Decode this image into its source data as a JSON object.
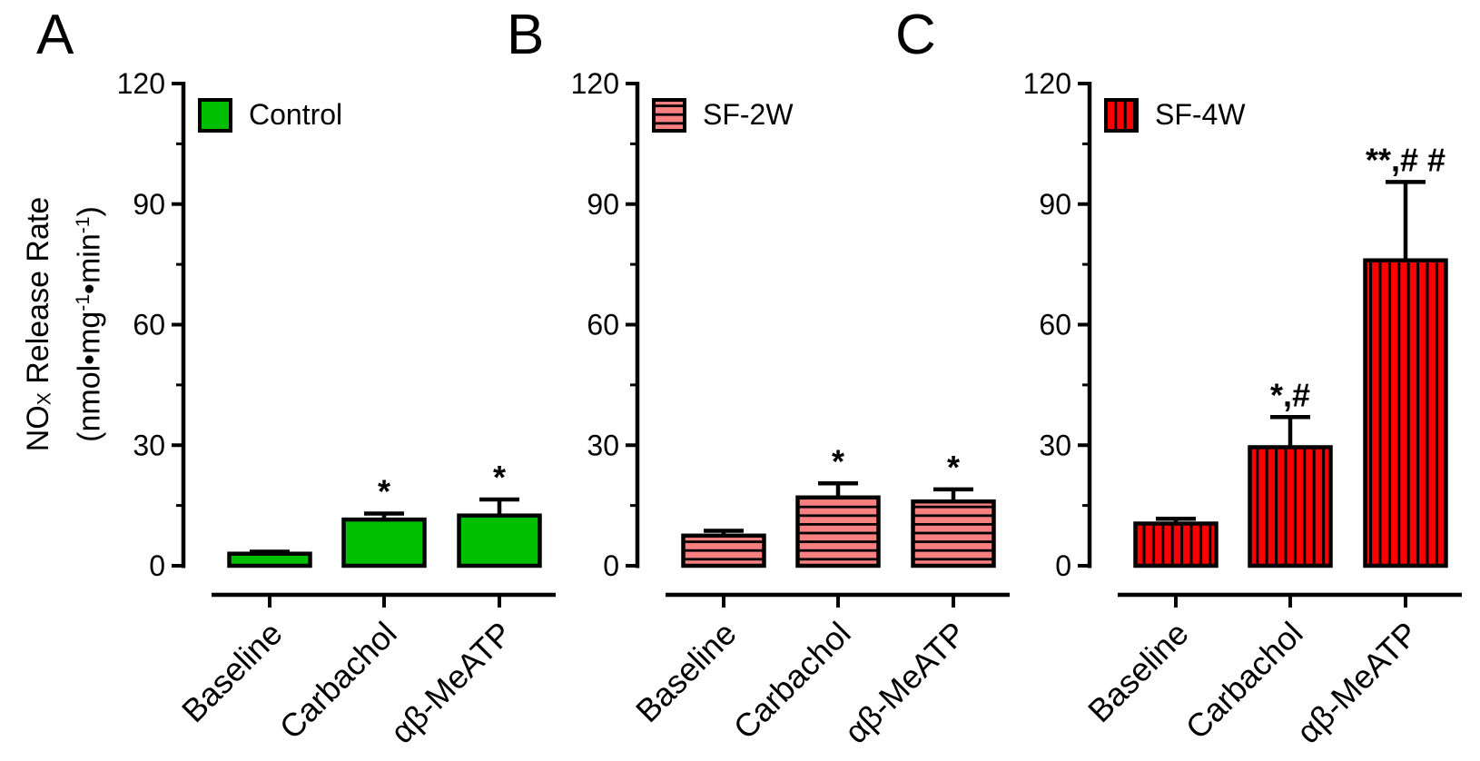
{
  "figure": {
    "background": "#FFFFFF",
    "axis_color": "#000000",
    "y_axis_title": {
      "text": "NOX Release Rate (nmol•mg⁻¹•min⁻¹)",
      "line1_parts": [
        {
          "t": "NO"
        },
        {
          "t": "X",
          "style": "sub"
        },
        {
          "t": " Release Rate"
        }
      ],
      "line2_parts": [
        {
          "t": "(nmol•mg"
        },
        {
          "t": "-1",
          "style": "sup"
        },
        {
          "t": "•min"
        },
        {
          "t": "-1",
          "style": "sup"
        },
        {
          "t": ")"
        }
      ]
    }
  },
  "chart_data": [
    {
      "type": "bar",
      "panel_label": "A",
      "legend": "Control",
      "legend_position": "top-left",
      "bar_color": "#00BE00",
      "pattern": "solid",
      "categories": [
        "Baseline",
        "Carbachol",
        "αβ-MeATP"
      ],
      "values": [
        3,
        11.5,
        12.5
      ],
      "errors": [
        0.5,
        1.5,
        4
      ],
      "significance": [
        "",
        "*",
        "*"
      ],
      "ylabel": "NOX Release Rate (nmol•mg⁻¹•min⁻¹)",
      "ylim": [
        0,
        120
      ],
      "yticks": [
        0,
        30,
        60,
        90,
        120
      ],
      "minor_yticks": [
        15,
        45,
        75,
        105
      ],
      "grid": false
    },
    {
      "type": "bar",
      "panel_label": "B",
      "legend": "SF-2W",
      "legend_position": "top-left",
      "bar_color": "#F98080",
      "pattern": "horizontal-stripes",
      "categories": [
        "Baseline",
        "Carbachol",
        "αβ-MeATP"
      ],
      "values": [
        7.5,
        17,
        16
      ],
      "errors": [
        1.2,
        3.5,
        3
      ],
      "significance": [
        "",
        "*",
        "*"
      ],
      "ylabel": "NOX Release Rate (nmol•mg⁻¹•min⁻¹)",
      "ylim": [
        0,
        120
      ],
      "yticks": [
        0,
        30,
        60,
        90,
        120
      ],
      "minor_yticks": [
        15,
        45,
        75,
        105
      ],
      "grid": false
    },
    {
      "type": "bar",
      "panel_label": "C",
      "legend": "SF-4W",
      "legend_position": "top-left",
      "bar_color": "#FA0000",
      "pattern": "vertical-stripes",
      "categories": [
        "Baseline",
        "Carbachol",
        "αβ-MeATP"
      ],
      "values": [
        10.5,
        29.5,
        76
      ],
      "errors": [
        1.2,
        7.5,
        19.5
      ],
      "significance": [
        "",
        "*,#",
        "**,# #"
      ],
      "ylabel": "NOX Release Rate (nmol•mg⁻¹•min⁻¹)",
      "ylim": [
        0,
        120
      ],
      "yticks": [
        0,
        30,
        60,
        90,
        120
      ],
      "minor_yticks": [
        15,
        45,
        75,
        105
      ],
      "grid": false
    }
  ]
}
